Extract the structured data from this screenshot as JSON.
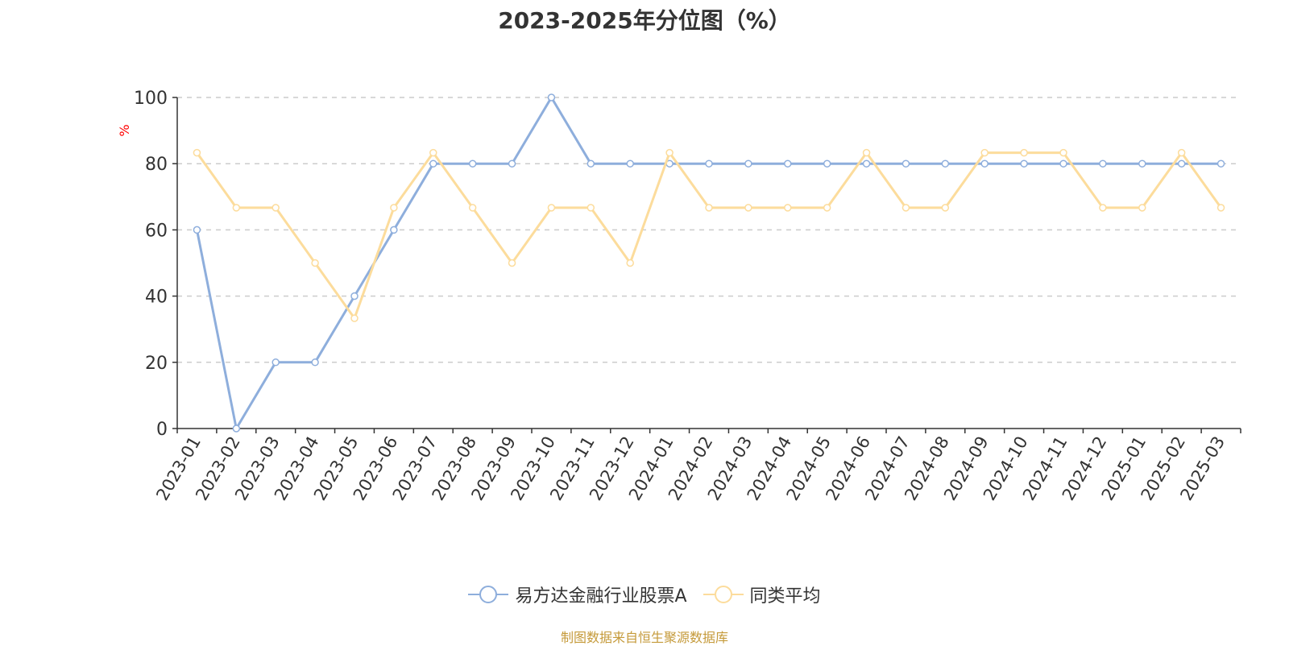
{
  "chart_data": {
    "type": "line",
    "title": "2023-2025年分位图（%）",
    "ylabel": "%",
    "ylim": [
      0,
      100
    ],
    "yticks": [
      0,
      20,
      40,
      60,
      80,
      100
    ],
    "grid": "horizontal dashed",
    "categories": [
      "2023-01",
      "2023-02",
      "2023-03",
      "2023-04",
      "2023-05",
      "2023-06",
      "2023-07",
      "2023-08",
      "2023-09",
      "2023-10",
      "2023-11",
      "2023-12",
      "2024-01",
      "2024-02",
      "2024-03",
      "2024-04",
      "2024-05",
      "2024-06",
      "2024-07",
      "2024-08",
      "2024-09",
      "2024-10",
      "2024-11",
      "2024-12",
      "2025-01",
      "2025-02",
      "2025-03"
    ],
    "series": [
      {
        "name": "易方达金融行业股票A",
        "color": "#8eaedc",
        "values": [
          60,
          0,
          20,
          20,
          40,
          60,
          80,
          80,
          80,
          100,
          80,
          80,
          80,
          80,
          80,
          80,
          80,
          80,
          80,
          80,
          80,
          80,
          80,
          80,
          80,
          80,
          80
        ]
      },
      {
        "name": "同类平均",
        "color": "#fcdc9c",
        "values": [
          83.3,
          66.7,
          66.7,
          50,
          33.3,
          66.7,
          83.3,
          66.7,
          50,
          66.7,
          66.7,
          50,
          83.3,
          66.7,
          66.7,
          66.7,
          66.7,
          83.3,
          66.7,
          66.7,
          83.3,
          83.3,
          83.3,
          66.7,
          66.7,
          83.3,
          66.7
        ]
      }
    ],
    "legend_position": "bottom-center"
  },
  "source_text": "制图数据来自恒生聚源数据库",
  "colors": {
    "axis": "#333333",
    "grid": "#cccccc",
    "source": "#c59a3a",
    "ylabel": "#ff0000"
  }
}
